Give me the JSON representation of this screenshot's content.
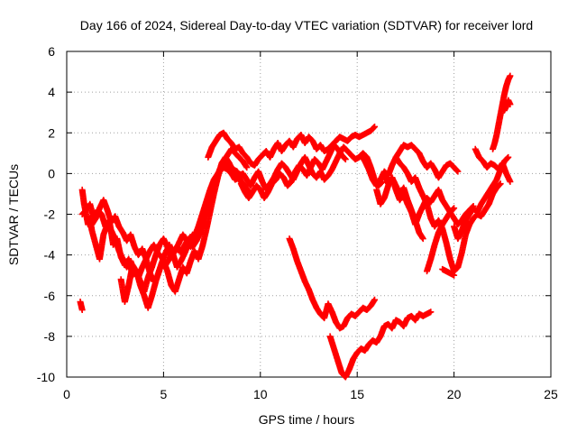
{
  "chart_data": {
    "type": "scatter",
    "title": "Day 166 of 2024, Sidereal Day-to-day VTEC variation (SDTVAR) for receiver lord",
    "xlabel": "GPS time / hours",
    "ylabel": "SDTVAR / TECUs",
    "xlim": [
      0,
      25
    ],
    "ylim": [
      -10,
      6
    ],
    "xticks": [
      "0",
      "5",
      "10",
      "15",
      "20",
      "25"
    ],
    "yticks": [
      "-10",
      "-8",
      "-6",
      "-4",
      "-2",
      "0",
      "2",
      "4",
      "6"
    ],
    "grid": true,
    "marker": "+",
    "color": "#ff0000",
    "series": [
      {
        "x": [
          0.7,
          0.8
        ],
        "y": [
          -6.3,
          -6.7
        ]
      },
      {
        "x": [
          0.8,
          0.9,
          1.0,
          1.1,
          1.2,
          1.3,
          1.5,
          1.7,
          1.9,
          2.1,
          2.3,
          2.5,
          2.7,
          2.9,
          3.1,
          3.3,
          3.5,
          3.7,
          3.9,
          4.1,
          4.3,
          4.5,
          4.7,
          4.9,
          5.1,
          5.3,
          5.5,
          5.7,
          5.9,
          6.1,
          6.3,
          6.5,
          6.7,
          6.9,
          7.1,
          7.3,
          7.5,
          7.7,
          7.9,
          8.1,
          8.3,
          8.5,
          8.7,
          8.9,
          9.1
        ],
        "y": [
          -0.8,
          -1.5,
          -2.0,
          -2.5,
          -2.2,
          -2.8,
          -3.5,
          -4.2,
          -3.0,
          -2.5,
          -2.8,
          -3.2,
          -3.8,
          -4.2,
          -4.6,
          -4.3,
          -4.8,
          -5.1,
          -4.6,
          -4.2,
          -3.8,
          -3.5,
          -3.9,
          -4.1,
          -4.5,
          -4.2,
          -3.8,
          -3.6,
          -3.9,
          -3.5,
          -3.2,
          -3.6,
          -3.3,
          -2.8,
          -2.0,
          -1.2,
          -0.6,
          -0.2,
          0.1,
          0.3,
          0.2,
          0.0,
          -0.3,
          -0.2,
          -0.5
        ]
      },
      {
        "x": [
          0.8,
          1.0,
          1.2,
          1.4,
          1.6,
          1.8,
          2.0,
          2.2,
          2.4,
          2.6,
          2.8,
          3.0,
          3.2,
          3.4,
          3.6,
          3.8,
          4.0,
          4.2,
          4.4,
          4.6,
          4.8,
          5.0,
          5.2,
          5.4,
          5.6,
          5.8,
          6.0,
          6.2,
          6.4,
          6.6,
          6.8,
          7.0,
          7.2,
          7.4,
          7.6,
          7.8,
          8.0,
          8.2,
          8.4,
          8.6,
          8.8,
          9.0
        ],
        "y": [
          -2.0,
          -1.8,
          -1.5,
          -2.2,
          -1.8,
          -2.0,
          -2.6,
          -2.3,
          -3.5,
          -3.2,
          -4.1,
          -4.5,
          -4.2,
          -5.0,
          -4.8,
          -5.3,
          -5.8,
          -5.1,
          -4.6,
          -4.0,
          -3.5,
          -3.2,
          -3.6,
          -4.1,
          -3.8,
          -3.4,
          -3.0,
          -3.3,
          -3.6,
          -3.1,
          -2.6,
          -2.0,
          -1.4,
          -0.8,
          -0.3,
          0.0,
          0.3,
          0.5,
          0.4,
          0.2,
          0.1,
          -0.2
        ]
      },
      {
        "x": [
          1.3,
          1.5,
          1.7,
          1.9,
          2.1,
          2.3,
          2.5,
          2.7,
          2.9,
          3.1,
          3.3,
          3.5,
          3.7,
          3.9,
          4.1,
          4.3,
          4.5,
          4.7,
          4.9,
          5.1,
          5.3,
          5.5,
          5.7,
          5.9,
          6.1,
          6.3,
          6.5,
          6.7,
          6.9,
          7.1,
          7.3,
          7.5,
          7.7,
          7.9,
          8.1,
          8.3,
          8.5,
          8.7,
          8.9,
          9.1,
          9.3
        ],
        "y": [
          -2.5,
          -2.2,
          -1.7,
          -1.3,
          -1.8,
          -2.4,
          -2.1,
          -2.6,
          -2.9,
          -3.3,
          -3.0,
          -3.6,
          -4.0,
          -3.7,
          -4.2,
          -4.9,
          -5.3,
          -5.0,
          -4.4,
          -3.9,
          -3.5,
          -4.0,
          -4.6,
          -4.3,
          -3.9,
          -3.4,
          -3.0,
          -3.3,
          -2.9,
          -2.2,
          -1.5,
          -0.9,
          -0.4,
          0.2,
          0.6,
          0.9,
          1.2,
          1.0,
          0.8,
          0.6,
          0.3
        ]
      },
      {
        "x": [
          2.8,
          3.0,
          3.2,
          3.4,
          3.6,
          3.8,
          4.0,
          4.2,
          4.4,
          4.6,
          4.8,
          5.0,
          5.2,
          5.4,
          5.6,
          5.8,
          6.0,
          6.2,
          6.4,
          6.6,
          6.8,
          7.0,
          7.2,
          7.4,
          7.6,
          7.8,
          8.0,
          8.2,
          8.4,
          8.6,
          8.8,
          9.0,
          9.2,
          9.4
        ],
        "y": [
          -5.2,
          -6.3,
          -5.5,
          -4.5,
          -4.8,
          -5.5,
          -6.0,
          -6.6,
          -6.0,
          -5.3,
          -4.7,
          -4.3,
          -4.8,
          -5.5,
          -5.8,
          -5.2,
          -4.6,
          -4.9,
          -4.3,
          -3.8,
          -4.2,
          -3.6,
          -2.8,
          -1.9,
          -1.0,
          -0.2,
          0.5,
          0.8,
          0.5,
          0.1,
          -0.2,
          -0.4,
          -0.6,
          -0.9
        ]
      },
      {
        "x": [
          7.3,
          7.5,
          7.7,
          7.9,
          8.1,
          8.3,
          8.5,
          8.7,
          8.9,
          9.1,
          9.3,
          9.5,
          9.7,
          9.9,
          10.1,
          10.3,
          10.5,
          10.7,
          10.9,
          11.1,
          11.3,
          11.5,
          11.7,
          11.9,
          12.1,
          12.3,
          12.5,
          12.7,
          12.9,
          13.1,
          13.3,
          13.5,
          13.7,
          13.9,
          14.1,
          14.3,
          14.5,
          14.7,
          14.9,
          15.1,
          15.3,
          15.5,
          15.7,
          15.9
        ],
        "y": [
          0.8,
          1.3,
          1.6,
          1.9,
          2.0,
          1.7,
          1.5,
          1.2,
          1.3,
          1.0,
          0.8,
          0.5,
          0.4,
          0.7,
          0.9,
          1.1,
          0.8,
          1.2,
          1.5,
          1.1,
          1.4,
          1.6,
          1.3,
          1.7,
          1.9,
          1.5,
          1.8,
          1.6,
          1.2,
          1.4,
          1.1,
          1.2,
          1.4,
          1.6,
          1.8,
          1.7,
          1.6,
          1.8,
          1.9,
          1.8,
          1.9,
          2.0,
          2.1,
          2.3
        ]
      },
      {
        "x": [
          8.9,
          9.1,
          9.3,
          9.5,
          9.7,
          9.9,
          10.1,
          10.3,
          10.5,
          10.7,
          10.9,
          11.1,
          11.3,
          11.5,
          11.7,
          11.9,
          12.1,
          12.3,
          12.5,
          12.7,
          12.9,
          13.1,
          13.3,
          13.5,
          13.7,
          13.9,
          14.1,
          14.3,
          14.5,
          14.7,
          14.9,
          15.1,
          15.3,
          15.5,
          15.7,
          15.9,
          16.1,
          16.3
        ],
        "y": [
          -0.1,
          0.0,
          -0.3,
          -0.6,
          -0.2,
          0.1,
          -0.4,
          -0.8,
          -0.5,
          -0.2,
          0.2,
          0.5,
          0.3,
          0.0,
          -0.3,
          0.1,
          0.5,
          0.8,
          0.4,
          0.0,
          -0.2,
          0.1,
          -0.3,
          -0.1,
          0.2,
          0.6,
          1.0,
          1.3,
          1.1,
          0.9,
          0.7,
          0.8,
          1.0,
          0.8,
          0.3,
          -0.3,
          -0.6,
          -0.4
        ]
      },
      {
        "x": [
          9.0,
          9.2,
          9.4,
          9.6,
          9.8,
          10.0,
          10.2,
          10.4,
          10.6,
          10.8,
          11.0,
          11.2,
          11.4,
          11.6,
          11.8,
          12.0,
          12.2,
          12.4,
          12.6,
          12.8,
          13.0,
          13.2,
          13.4,
          13.6,
          13.8,
          14.0,
          14.2,
          14.4
        ],
        "y": [
          -0.5,
          -0.9,
          -1.2,
          -0.9,
          -0.6,
          -0.8,
          -1.2,
          -0.9,
          -0.5,
          -0.3,
          0.0,
          -0.2,
          -0.6,
          -0.4,
          0.1,
          0.4,
          0.2,
          -0.1,
          0.3,
          0.7,
          0.5,
          0.2,
          0.6,
          1.0,
          1.4,
          1.2,
          0.9,
          0.7
        ]
      },
      {
        "x": [
          11.5,
          11.7,
          11.9,
          12.1,
          12.3,
          12.5,
          12.7,
          12.9,
          13.1,
          13.3,
          13.5,
          13.7,
          13.9,
          14.1,
          14.3,
          14.5,
          14.7,
          14.9,
          15.1,
          15.3,
          15.5,
          15.7,
          15.9
        ],
        "y": [
          -3.2,
          -3.7,
          -4.3,
          -4.8,
          -5.3,
          -5.7,
          -6.2,
          -6.6,
          -6.9,
          -7.1,
          -6.4,
          -6.8,
          -7.3,
          -7.6,
          -7.5,
          -7.1,
          -6.9,
          -7.0,
          -6.8,
          -6.6,
          -6.7,
          -6.5,
          -6.2
        ]
      },
      {
        "x": [
          13.6,
          13.8,
          14.0,
          14.2,
          14.4,
          14.6,
          14.8,
          15.0,
          15.2,
          15.4,
          15.6,
          15.8,
          16.0,
          16.2,
          16.4,
          16.6,
          16.8,
          17.0,
          17.2,
          17.4,
          17.6,
          17.8,
          18.0,
          18.2,
          18.4,
          18.6,
          18.8
        ],
        "y": [
          -8.0,
          -8.6,
          -9.2,
          -9.8,
          -10.0,
          -9.6,
          -9.1,
          -8.8,
          -8.6,
          -8.7,
          -8.4,
          -8.2,
          -8.3,
          -8.0,
          -7.5,
          -7.4,
          -7.6,
          -7.2,
          -7.3,
          -7.5,
          -7.1,
          -7.0,
          -7.2,
          -6.9,
          -7.0,
          -6.9,
          -6.8
        ]
      },
      {
        "x": [
          15.2,
          15.4,
          15.6,
          15.8,
          16.0,
          16.2,
          16.4,
          16.6,
          16.8,
          17.0,
          17.2,
          17.4,
          17.6,
          17.8,
          18.0,
          18.2,
          18.4,
          18.6,
          18.8,
          19.0,
          19.2,
          19.4,
          19.6,
          19.8,
          20.0,
          20.2
        ],
        "y": [
          0.9,
          0.6,
          0.2,
          -0.3,
          -0.6,
          -0.3,
          0.1,
          -0.1,
          0.4,
          0.8,
          1.1,
          1.4,
          1.3,
          1.4,
          1.2,
          1.0,
          0.6,
          0.3,
          0.5,
          0.2,
          -0.2,
          0.1,
          0.4,
          0.5,
          0.3,
          0.1
        ]
      },
      {
        "x": [
          16.0,
          16.2,
          16.4,
          16.6,
          16.8,
          17.0,
          17.2,
          17.4,
          17.6,
          17.8,
          18.0,
          18.2,
          18.4,
          18.6,
          18.8,
          19.0,
          19.2,
          19.4,
          19.6,
          19.8,
          20.0,
          20.2,
          20.4,
          20.6,
          20.8,
          21.0
        ],
        "y": [
          -0.8,
          -1.5,
          -1.2,
          -0.6,
          -0.2,
          -0.8,
          -1.3,
          -1.0,
          -1.5,
          -1.9,
          -2.5,
          -2.0,
          -1.6,
          -1.2,
          -1.4,
          -1.1,
          -0.8,
          -1.3,
          -1.6,
          -1.9,
          -2.2,
          -2.5,
          -2.3,
          -2.0,
          -1.8,
          -1.6
        ]
      },
      {
        "x": [
          16.4,
          16.6,
          16.8,
          17.0,
          17.2,
          17.4,
          17.6,
          17.8,
          18.0,
          18.2,
          18.4
        ],
        "y": [
          0.0,
          -0.5,
          -0.2,
          -0.6,
          -1.0,
          -0.7,
          -1.3,
          -1.8,
          -2.3,
          -2.9,
          -3.2
        ]
      },
      {
        "x": [
          17.0,
          17.2,
          17.4,
          17.6,
          17.8,
          18.0,
          18.2,
          18.4,
          18.6,
          18.8,
          19.0,
          19.2,
          19.4,
          19.6,
          19.8,
          20.0,
          20.2,
          20.4,
          20.6,
          20.8,
          21.0,
          21.2,
          21.4,
          21.6,
          21.8,
          22.0,
          22.2,
          22.4
        ],
        "y": [
          0.8,
          0.5,
          0.3,
          0.0,
          -0.4,
          -0.2,
          -0.7,
          -1.1,
          -1.5,
          -2.2,
          -2.6,
          -2.3,
          -2.7,
          -3.4,
          -4.2,
          -4.8,
          -4.6,
          -3.9,
          -3.0,
          -2.5,
          -2.2,
          -2.0,
          -2.1,
          -1.8,
          -1.5,
          -1.0,
          -0.7,
          -0.5
        ]
      },
      {
        "x": [
          18.6,
          18.8,
          19.0,
          19.2,
          19.4,
          19.6,
          19.8,
          20.0
        ],
        "y": [
          -4.8,
          -4.2,
          -3.5,
          -2.9,
          -2.5,
          -2.2,
          -1.9,
          -1.7
        ]
      },
      {
        "x": [
          19.4,
          19.6,
          19.8,
          20.0
        ],
        "y": [
          -4.7,
          -4.8,
          -4.9,
          -5.0
        ]
      },
      {
        "x": [
          20.0,
          20.2,
          20.4,
          20.6,
          20.8,
          21.0,
          21.2,
          21.4,
          21.6,
          21.8,
          22.0,
          22.2,
          22.4,
          22.6,
          22.8
        ],
        "y": [
          -2.6,
          -3.2,
          -2.8,
          -2.3,
          -2.0,
          -1.7,
          -1.9,
          -1.5,
          -1.2,
          -0.9,
          -0.6,
          -0.3,
          0.2,
          0.6,
          0.8
        ]
      },
      {
        "x": [
          21.1,
          21.3,
          21.5,
          21.7,
          21.9,
          22.1,
          22.3,
          22.5,
          22.7,
          22.9
        ],
        "y": [
          1.2,
          0.8,
          0.6,
          0.3,
          0.5,
          0.4,
          0.2,
          0.5,
          0.0,
          -0.4
        ]
      },
      {
        "x": [
          22.0,
          22.1,
          22.2,
          22.3,
          22.4,
          22.5,
          22.6,
          22.7,
          22.8,
          22.9
        ],
        "y": [
          1.2,
          1.5,
          1.9,
          2.4,
          2.9,
          3.4,
          3.9,
          4.3,
          4.6,
          4.8
        ]
      },
      {
        "x": [
          22.6,
          22.7,
          22.8,
          22.9
        ],
        "y": [
          3.1,
          3.3,
          3.6,
          3.4
        ]
      }
    ]
  }
}
